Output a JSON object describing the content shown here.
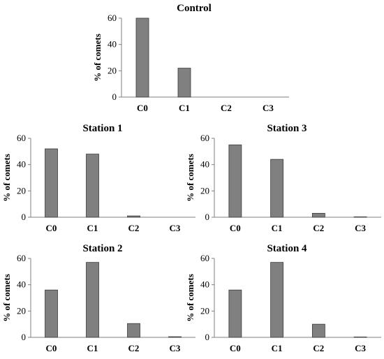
{
  "chart_data": [
    {
      "type": "bar",
      "title": "Control",
      "ylabel": "% of comets",
      "categories": [
        "C0",
        "C1",
        "C2",
        "C3"
      ],
      "values": [
        60,
        22,
        0,
        0
      ],
      "ylim": [
        0,
        60
      ],
      "yticks": [
        0,
        20,
        40,
        60
      ],
      "bar_color": "#808080"
    },
    {
      "type": "bar",
      "title": "Station 1",
      "ylabel": "% of comets",
      "categories": [
        "C0",
        "C1",
        "C2",
        "C3"
      ],
      "values": [
        52,
        48,
        1,
        0
      ],
      "ylim": [
        0,
        60
      ],
      "yticks": [
        0,
        20,
        40,
        60
      ],
      "bar_color": "#808080"
    },
    {
      "type": "bar",
      "title": "Station 3",
      "ylabel": "% of comets",
      "categories": [
        "C0",
        "C1",
        "C2",
        "C3"
      ],
      "values": [
        55,
        44,
        3,
        0.3
      ],
      "ylim": [
        0,
        60
      ],
      "yticks": [
        0,
        20,
        40,
        60
      ],
      "bar_color": "#808080"
    },
    {
      "type": "bar",
      "title": "Station 2",
      "ylabel": "% of comets",
      "categories": [
        "C0",
        "C1",
        "C2",
        "C3"
      ],
      "values": [
        36,
        57,
        10.5,
        0.5
      ],
      "ylim": [
        0,
        60
      ],
      "yticks": [
        0,
        20,
        40,
        60
      ],
      "bar_color": "#808080"
    },
    {
      "type": "bar",
      "title": "Station 4",
      "ylabel": "% of comets",
      "categories": [
        "C0",
        "C1",
        "C2",
        "C3"
      ],
      "values": [
        36,
        57,
        10,
        0.3
      ],
      "ylim": [
        0,
        60
      ],
      "yticks": [
        0,
        20,
        40,
        60
      ],
      "bar_color": "#808080"
    }
  ]
}
